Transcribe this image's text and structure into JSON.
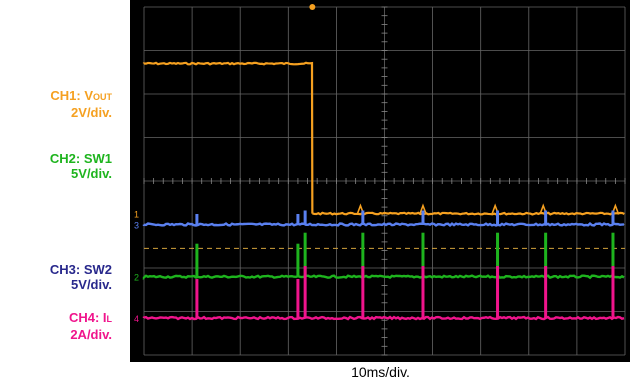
{
  "colors": {
    "ch1": "#f5a020",
    "ch2": "#1eb41e",
    "ch3": "#5a80f0",
    "ch4": "#f0148c",
    "ch3_label": "#28288c",
    "trigger_line": "#d2a23c",
    "background": "#000000",
    "grid": "#666666"
  },
  "labels": {
    "ch1_name": "CH1: V",
    "ch1_sub": "OUT",
    "ch1_scale": "2V/div.",
    "ch2_name": "CH2: SW1",
    "ch2_scale": "5V/div.",
    "ch3_name": "CH3: SW2",
    "ch3_scale": "5V/div.",
    "ch4_name": "CH4: I",
    "ch4_sub": "L",
    "ch4_scale": "2A/div."
  },
  "chart_data": {
    "type": "line",
    "xlabel": "10ms/div.",
    "x_divisions": 10,
    "y_divisions": 8,
    "x_range_ms": [
      0,
      100
    ],
    "grid": true,
    "series": [
      {
        "name": "CH1: VOUT",
        "scale": "2V/div.",
        "baseline_div": 3.25,
        "high_level_div": 6.7,
        "step_down_ms": 35,
        "spikes_ms": [
          45,
          58,
          73,
          83,
          98
        ]
      },
      {
        "name": "CH2: SW1",
        "scale": "5V/div.",
        "baseline_div": 1.8,
        "pulses_ms": [
          11,
          32,
          33.5,
          45.5,
          58,
          73.5,
          83.5,
          97.5
        ],
        "pulse_height_div": [
          1.0,
          1.0,
          1.0,
          1.0,
          1.0,
          1.0,
          1.0,
          1.0
        ]
      },
      {
        "name": "CH3: SW2",
        "scale": "5V/div.",
        "baseline_div": 3.0,
        "pulses_ms": [
          11,
          32,
          33.5,
          45.5,
          58,
          73.5,
          83.5,
          97.5
        ]
      },
      {
        "name": "CH4: IL",
        "scale": "2A/div.",
        "baseline_div": 0.85,
        "pulses_ms": [
          11,
          32,
          33.5,
          45.5,
          58,
          73.5,
          83.5,
          97.5
        ]
      }
    ]
  }
}
